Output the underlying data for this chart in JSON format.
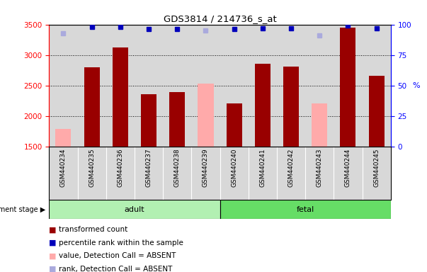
{
  "title": "GDS3814 / 214736_s_at",
  "samples": [
    "GSM440234",
    "GSM440235",
    "GSM440236",
    "GSM440237",
    "GSM440238",
    "GSM440239",
    "GSM440240",
    "GSM440241",
    "GSM440242",
    "GSM440243",
    "GSM440244",
    "GSM440245"
  ],
  "transformed_count": [
    null,
    2800,
    3125,
    2365,
    2390,
    null,
    2210,
    2855,
    2810,
    null,
    3450,
    2665
  ],
  "absent_value": [
    1790,
    null,
    null,
    null,
    null,
    2540,
    null,
    null,
    null,
    2205,
    null,
    null
  ],
  "percentile_rank": [
    93,
    98,
    98,
    96,
    96,
    95,
    96,
    97,
    97,
    91,
    99,
    97
  ],
  "absent_rank_present": [
    false,
    true,
    true,
    true,
    true,
    false,
    true,
    true,
    true,
    false,
    true,
    true
  ],
  "absent_rank_absent": [
    true,
    false,
    false,
    false,
    false,
    true,
    false,
    false,
    false,
    true,
    false,
    false
  ],
  "groups": [
    "adult",
    "adult",
    "adult",
    "adult",
    "adult",
    "adult",
    "fetal",
    "fetal",
    "fetal",
    "fetal",
    "fetal",
    "fetal"
  ],
  "group_colors": {
    "adult": "#b2f0b2",
    "fetal": "#66dd66"
  },
  "ylim_left": [
    1500,
    3500
  ],
  "ylim_right": [
    0,
    100
  ],
  "yticks_left": [
    1500,
    2000,
    2500,
    3000,
    3500
  ],
  "yticks_right": [
    0,
    25,
    50,
    75,
    100
  ],
  "bar_color_dark_red": "#990000",
  "bar_color_pink": "#ffaaaa",
  "dot_color_blue": "#0000bb",
  "dot_color_lightblue": "#aaaadd",
  "background_plot": "#d8d8d8",
  "bar_width": 0.55,
  "legend_items": [
    {
      "color": "#990000",
      "text": " transformed count"
    },
    {
      "color": "#0000bb",
      "text": " percentile rank within the sample"
    },
    {
      "color": "#ffaaaa",
      "text": " value, Detection Call = ABSENT"
    },
    {
      "color": "#aaaadd",
      "text": " rank, Detection Call = ABSENT"
    }
  ]
}
